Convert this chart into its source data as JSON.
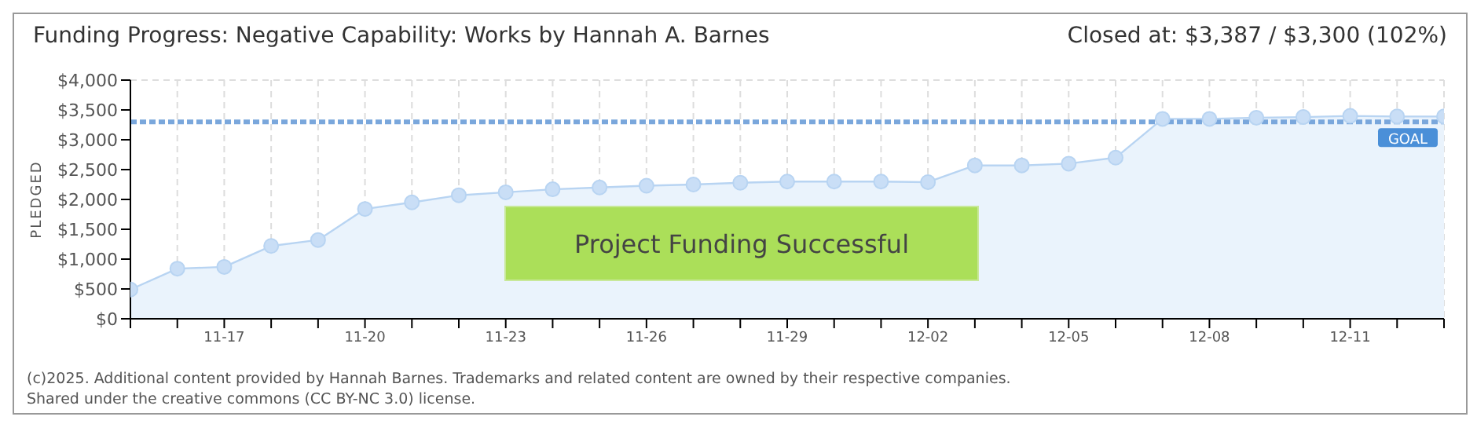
{
  "chart_data": {
    "type": "area",
    "title": "Funding Progress: Negative Capability: Works by Hannah A. Barnes",
    "subtitle": "Closed at:  $3,387 / $3,300 (102%)",
    "ylabel": "PLEDGED",
    "categories": [
      null,
      null,
      "11-17",
      null,
      null,
      "11-20",
      null,
      null,
      "11-23",
      null,
      null,
      "11-26",
      null,
      null,
      "11-29",
      null,
      null,
      "12-02",
      null,
      null,
      "12-05",
      null,
      null,
      "12-08",
      null,
      null,
      "12-11",
      null,
      null
    ],
    "series": [
      {
        "color": "#b8d4f2",
        "values": [
          490,
          840,
          870,
          1220,
          1320,
          1840,
          1950,
          2070,
          2120,
          2170,
          2200,
          2230,
          2250,
          2280,
          2300,
          2300,
          2300,
          2290,
          2570,
          2570,
          2600,
          2700,
          3350,
          3350,
          3370,
          3380,
          3400,
          3390,
          3390
        ]
      }
    ],
    "ylim": [
      0,
      4000
    ],
    "yticks": [
      {
        "value": 0,
        "label": "$0"
      },
      {
        "value": 500,
        "label": "$500"
      },
      {
        "value": 1000,
        "label": "$1,000"
      },
      {
        "value": 1500,
        "label": "$1,500"
      },
      {
        "value": 2000,
        "label": "$2,000"
      },
      {
        "value": 2500,
        "label": "$2,500"
      },
      {
        "value": 3000,
        "label": "$3,000"
      },
      {
        "value": 3500,
        "label": "$3,500"
      },
      {
        "value": 4000,
        "label": "$4,000"
      }
    ],
    "ref_lines": [
      {
        "axis": "y",
        "value": 3300,
        "label": "GOAL",
        "color": "#7aa7dc",
        "line_style": "dashed"
      }
    ],
    "annotations": [
      "Project Funding Successful",
      "(c)2025. Additional content provided by Hannah Barnes. Trademarks and related content are owned by their respective companies.",
      "Shared under the creative commons (CC BY-NC 3.0) license."
    ],
    "grid": true,
    "marker": "circle",
    "legend": false
  }
}
